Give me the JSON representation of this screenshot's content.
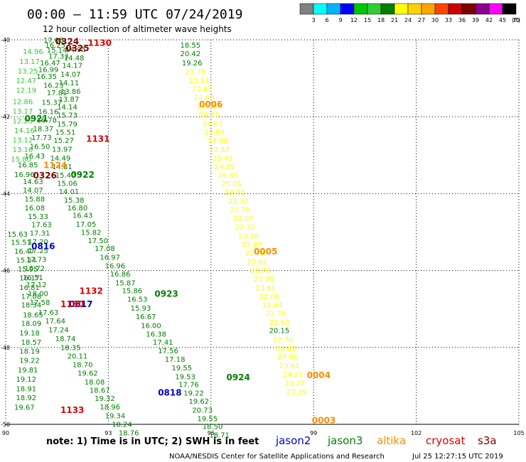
{
  "header": {
    "title": "00:00 – 11:59 UTC 07/24/2019",
    "subtitle": "12 hour collection of altimeter wave heights"
  },
  "colorbar": {
    "colors": [
      "#808080",
      "#00ffff",
      "#00b4ff",
      "#0000ff",
      "#00c800",
      "#32cd32",
      "#008000",
      "#ffff00",
      "#ffd200",
      "#ffa500",
      "#ff4500",
      "#cd0000",
      "#800000",
      "#8b008b",
      "#ff00ff",
      "#000000"
    ],
    "labels": [
      "3",
      "6",
      "9",
      "12",
      "15",
      "18",
      "21",
      "24",
      "27",
      "30",
      "33",
      "36",
      "39",
      "42",
      "45",
      "70"
    ],
    "unit": "(ft)"
  },
  "footer": {
    "note": "note:  1) Time is in UTC;  2) SWH is in feet",
    "satellites": [
      {
        "name": "jason2",
        "color": "#0000cc"
      },
      {
        "name": "jason3",
        "color": "#008000"
      },
      {
        "name": "altika",
        "color": "#ff8c00"
      },
      {
        "name": "cryosat",
        "color": "#e00000"
      },
      {
        "name": "s3a",
        "color": "#800000"
      }
    ],
    "credit": "NOAA/NESDIS Center for Satellite Applications and Research",
    "timestamp": "Jul 25 12:27:15 UTC 2019"
  },
  "chart_data": {
    "type": "scatter",
    "title": "00:00 – 11:59 UTC 07/24/2019",
    "subtitle": "12 hour collection of altimeter wave heights",
    "xlabel": "",
    "ylabel": "",
    "xlim": [
      90,
      105
    ],
    "ylim": [
      -50,
      -40
    ],
    "x_ticks": [
      90,
      93,
      96,
      99,
      102,
      105
    ],
    "y_ticks": [
      -40,
      -42,
      -44,
      -46,
      -48,
      -50
    ],
    "grid": "dotted",
    "series": [
      {
        "name": "altika",
        "color": "#ffff00",
        "points": [
          [
            95.1,
            -40.13,
            "18.55",
            "#008000"
          ],
          [
            95.1,
            -40.35,
            "20.42",
            "#008000"
          ],
          [
            95.15,
            -40.59,
            "19.26",
            "#008000"
          ],
          [
            95.25,
            -40.82,
            "21.79"
          ],
          [
            95.35,
            -41.05,
            "22.13"
          ],
          [
            95.45,
            -41.27,
            "22.62"
          ],
          [
            95.5,
            -41.49,
            "22.43"
          ],
          [
            95.6,
            -41.71,
            "22.35"
          ],
          [
            95.65,
            -41.94,
            "24.23"
          ],
          [
            95.75,
            -42.17,
            "24.67"
          ],
          [
            95.8,
            -42.39,
            "23.89"
          ],
          [
            95.9,
            -42.62,
            "23.96"
          ],
          [
            95.95,
            -42.85,
            "23.67"
          ],
          [
            96.05,
            -43.07,
            "25.41"
          ],
          [
            96.1,
            -43.29,
            "24.25"
          ],
          [
            96.2,
            -43.51,
            "26.45"
          ],
          [
            96.3,
            -43.73,
            "25.05"
          ],
          [
            96.4,
            -43.96,
            "23.73"
          ],
          [
            96.5,
            -44.19,
            "22.32"
          ],
          [
            96.55,
            -44.41,
            "21.70"
          ],
          [
            96.65,
            -44.63,
            "22.07"
          ],
          [
            96.7,
            -44.86,
            "22.32"
          ],
          [
            96.8,
            -45.09,
            "23.16"
          ],
          [
            96.9,
            -45.31,
            "22.87"
          ],
          [
            97.0,
            -45.54,
            "22.28"
          ],
          [
            97.05,
            -45.77,
            "22.81"
          ],
          [
            97.15,
            -45.99,
            "23.76"
          ],
          [
            97.25,
            -46.21,
            "23.25"
          ],
          [
            97.3,
            -46.44,
            "23.61"
          ],
          [
            97.4,
            -46.67,
            "22.06"
          ],
          [
            97.5,
            -46.89,
            "22.64"
          ],
          [
            97.6,
            -47.11,
            "22.70"
          ],
          [
            97.7,
            -47.34,
            "22.60"
          ],
          [
            97.7,
            -47.55,
            "20.15",
            "#008000"
          ],
          [
            97.8,
            -47.79,
            "22.70"
          ],
          [
            97.9,
            -48.01,
            "22.82"
          ],
          [
            97.95,
            -48.23,
            "24.61"
          ],
          [
            98.0,
            -48.47,
            "23.61"
          ],
          [
            98.1,
            -48.69,
            "24.21"
          ],
          [
            98.15,
            -48.92,
            "23.25"
          ],
          [
            98.2,
            -49.15,
            "23.39"
          ]
        ]
      },
      {
        "name": "jason3",
        "color": "#008000",
        "points": [
          [
            91.1,
            -40.0,
            "17.05"
          ],
          [
            91.15,
            -40.13,
            "16.25"
          ],
          [
            91.2,
            -40.26,
            "15.14"
          ],
          [
            91.25,
            -40.42,
            "17.33"
          ],
          [
            91.0,
            -40.59,
            "16.47"
          ],
          [
            90.95,
            -40.77,
            "16.99"
          ],
          [
            90.9,
            -40.94,
            "16.35"
          ],
          [
            91.1,
            -41.17,
            "16.23"
          ],
          [
            91.2,
            -41.37,
            "17.81"
          ],
          [
            91.05,
            -41.62,
            "15.37"
          ],
          [
            90.95,
            -41.86,
            "16.16"
          ],
          [
            90.9,
            -42.08,
            "16.78"
          ],
          [
            90.8,
            -42.3,
            "18.37"
          ],
          [
            90.75,
            -42.53,
            "17.73"
          ],
          [
            90.7,
            -42.76,
            "16.50"
          ],
          [
            90.55,
            -43.01,
            "16.43"
          ],
          [
            90.35,
            -43.24,
            "16.85"
          ],
          [
            90.25,
            -43.49,
            "16.96"
          ],
          [
            91.75,
            -40.24,
            "14.95"
          ],
          [
            91.7,
            -40.46,
            "14.48"
          ],
          [
            91.65,
            -40.66,
            "14.17"
          ],
          [
            91.6,
            -40.89,
            "14.07"
          ],
          [
            91.55,
            -41.11,
            "14.11"
          ],
          [
            91.6,
            -41.33,
            "13.86"
          ],
          [
            91.55,
            -41.53,
            "13.87"
          ],
          [
            91.5,
            -41.74,
            "14.14"
          ],
          [
            91.5,
            -41.95,
            "15.73"
          ],
          [
            91.5,
            -42.18,
            "15.79"
          ],
          [
            91.45,
            -42.39,
            "15.51"
          ],
          [
            91.4,
            -42.61,
            "15.27"
          ],
          [
            91.35,
            -42.84,
            "13.97"
          ],
          [
            91.3,
            -43.07,
            "14.49"
          ],
          [
            91.35,
            -43.29,
            "14.81"
          ],
          [
            91.45,
            -43.51,
            "15.40"
          ],
          [
            91.5,
            -43.72,
            "15.06"
          ],
          [
            91.55,
            -43.94,
            "14.01"
          ],
          [
            91.7,
            -44.16,
            "15.38"
          ],
          [
            91.8,
            -44.36,
            "16.80"
          ],
          [
            91.95,
            -44.56,
            "16.43"
          ],
          [
            92.05,
            -44.79,
            "17.05"
          ],
          [
            92.2,
            -45.0,
            "15.82"
          ],
          [
            92.4,
            -45.21,
            "17.50"
          ],
          [
            92.6,
            -45.42,
            "17.08"
          ],
          [
            92.75,
            -45.65,
            "16.97"
          ],
          [
            92.9,
            -45.87,
            "16.96"
          ],
          [
            93.05,
            -46.08,
            "16.86"
          ],
          [
            93.2,
            -46.31,
            "15.87"
          ],
          [
            93.4,
            -46.52,
            "15.86"
          ],
          [
            93.55,
            -46.74,
            "16.53"
          ],
          [
            93.65,
            -46.97,
            "15.93"
          ],
          [
            93.8,
            -47.19,
            "16.67"
          ],
          [
            93.95,
            -47.42,
            "16.00"
          ],
          [
            94.1,
            -47.64,
            "16.38"
          ],
          [
            94.3,
            -47.86,
            "17.41"
          ],
          [
            94.45,
            -48.08,
            "17.56"
          ],
          [
            94.65,
            -48.3,
            "17.18"
          ],
          [
            94.85,
            -48.52,
            "19.55"
          ],
          [
            94.95,
            -48.75,
            "19.53"
          ],
          [
            95.05,
            -48.96,
            "17.76"
          ],
          [
            95.2,
            -49.18,
            "19.22"
          ],
          [
            95.35,
            -49.39,
            "19.62"
          ],
          [
            95.45,
            -49.62,
            "20.73"
          ],
          [
            95.6,
            -49.84,
            "19.55"
          ],
          [
            95.75,
            -50.05,
            "18.50"
          ],
          [
            95.95,
            -50.27,
            "18.71"
          ],
          [
            90.5,
            -43.68,
            "14.63"
          ],
          [
            90.5,
            -43.9,
            "14.07"
          ],
          [
            90.55,
            -44.13,
            "15.88"
          ],
          [
            90.55,
            -44.36,
            "16.08"
          ],
          [
            90.65,
            -44.58,
            "15.33"
          ],
          [
            90.75,
            -44.8,
            "17.63"
          ],
          [
            90.7,
            -45.02,
            "17.31"
          ],
          [
            90.65,
            -45.24,
            "17.20"
          ],
          [
            90.65,
            -45.47,
            "17.25"
          ],
          [
            90.6,
            -45.7,
            "17.73"
          ],
          [
            90.55,
            -45.93,
            "16.72"
          ],
          [
            90.5,
            -46.17,
            "16.51"
          ],
          [
            90.6,
            -46.36,
            "17.12"
          ],
          [
            90.65,
            -46.59,
            "18.00"
          ],
          [
            90.7,
            -46.82,
            "17.58"
          ],
          [
            90.95,
            -47.08,
            "17.63"
          ],
          [
            91.15,
            -47.3,
            "17.64"
          ],
          [
            91.25,
            -47.53,
            "17.24"
          ],
          [
            91.45,
            -47.76,
            "18.74"
          ],
          [
            91.6,
            -47.99,
            "18.35"
          ],
          [
            91.8,
            -48.22,
            "20.11"
          ],
          [
            91.95,
            -48.44,
            "18.70"
          ],
          [
            92.1,
            -48.66,
            "19.62"
          ],
          [
            92.3,
            -48.89,
            "18.08"
          ],
          [
            92.45,
            -49.1,
            "18.67"
          ],
          [
            92.6,
            -49.32,
            "19.32"
          ],
          [
            92.75,
            -49.54,
            "18.96"
          ],
          [
            92.9,
            -49.77,
            "19.34"
          ],
          [
            93.1,
            -49.99,
            "18.24"
          ],
          [
            93.3,
            -50.21,
            "18.76"
          ],
          [
            90.05,
            -45.05,
            "15.63"
          ],
          [
            90.15,
            -45.26,
            "15.51"
          ],
          [
            90.25,
            -45.49,
            "16.47"
          ],
          [
            90.3,
            -45.72,
            "15.54"
          ],
          [
            90.35,
            -45.95,
            "15.95"
          ],
          [
            90.4,
            -46.18,
            "16.17"
          ],
          [
            90.4,
            -46.43,
            "16.81"
          ],
          [
            90.45,
            -46.66,
            "17.08"
          ],
          [
            90.45,
            -46.89,
            "18.34"
          ],
          [
            90.5,
            -47.14,
            "18.65"
          ],
          [
            90.45,
            -47.37,
            "18.09"
          ],
          [
            90.4,
            -47.62,
            "19.18"
          ],
          [
            90.45,
            -47.86,
            "18.57"
          ],
          [
            90.4,
            -48.09,
            "18.19"
          ],
          [
            90.4,
            -48.33,
            "19.22"
          ],
          [
            90.35,
            -48.58,
            "19.81"
          ],
          [
            90.3,
            -48.82,
            "19.12"
          ],
          [
            90.3,
            -49.07,
            "18.91"
          ],
          [
            90.3,
            -49.3,
            "18.92"
          ],
          [
            90.25,
            -49.55,
            "19.67"
          ]
        ]
      },
      {
        "name": "altika-light",
        "color": "#32cd32",
        "points": [
          [
            90.5,
            -40.3,
            "14.96"
          ],
          [
            90.4,
            -40.55,
            "13.17"
          ],
          [
            90.35,
            -40.8,
            "13.25"
          ],
          [
            90.3,
            -41.05,
            "12.47"
          ],
          [
            90.3,
            -41.3,
            "12.19"
          ],
          [
            90.2,
            -41.6,
            "12.86"
          ],
          [
            90.2,
            -41.85,
            "13.17"
          ],
          [
            90.2,
            -42.1,
            "12.25"
          ],
          [
            90.25,
            -42.35,
            "14.16"
          ],
          [
            90.2,
            -42.6,
            "13.12"
          ],
          [
            90.2,
            -42.85,
            "13.16"
          ],
          [
            90.15,
            -43.1,
            "15.80"
          ]
        ]
      },
      {
        "name": "times",
        "points": [
          [
            91.45,
            -40.05,
            "0324",
            "#800000"
          ],
          [
            91.75,
            -40.22,
            "0325",
            "#800000"
          ],
          [
            92.4,
            -40.08,
            "1130",
            "#e00000"
          ],
          [
            95.65,
            -41.68,
            "0006",
            "#ff8c00"
          ],
          [
            90.55,
            -42.05,
            "0921",
            "#008000"
          ],
          [
            92.35,
            -42.58,
            "1131",
            "#e00000"
          ],
          [
            91.1,
            -43.26,
            "1124",
            "#ff8c00"
          ],
          [
            90.8,
            -43.53,
            "0326",
            "#800000"
          ],
          [
            91.9,
            -43.51,
            "0922",
            "#008000"
          ],
          [
            90.75,
            -45.37,
            "0816",
            "#0000cc"
          ],
          [
            97.25,
            -45.51,
            "0005",
            "#ff8c00"
          ],
          [
            92.15,
            -46.53,
            "1132",
            "#e00000"
          ],
          [
            91.85,
            -46.88,
            "0817",
            "#0000cc"
          ],
          [
            91.6,
            -46.88,
            "1180",
            "#e00000"
          ],
          [
            94.35,
            -46.61,
            "0923",
            "#008000"
          ],
          [
            96.45,
            -48.78,
            "0924",
            "#008000"
          ],
          [
            94.45,
            -49.18,
            "0818",
            "#0000cc"
          ],
          [
            98.8,
            -48.72,
            "0004",
            "#ff8c00"
          ],
          [
            91.6,
            -49.63,
            "1133",
            "#e00000"
          ],
          [
            98.95,
            -49.9,
            "0003",
            "#ff8c00"
          ]
        ]
      }
    ]
  }
}
